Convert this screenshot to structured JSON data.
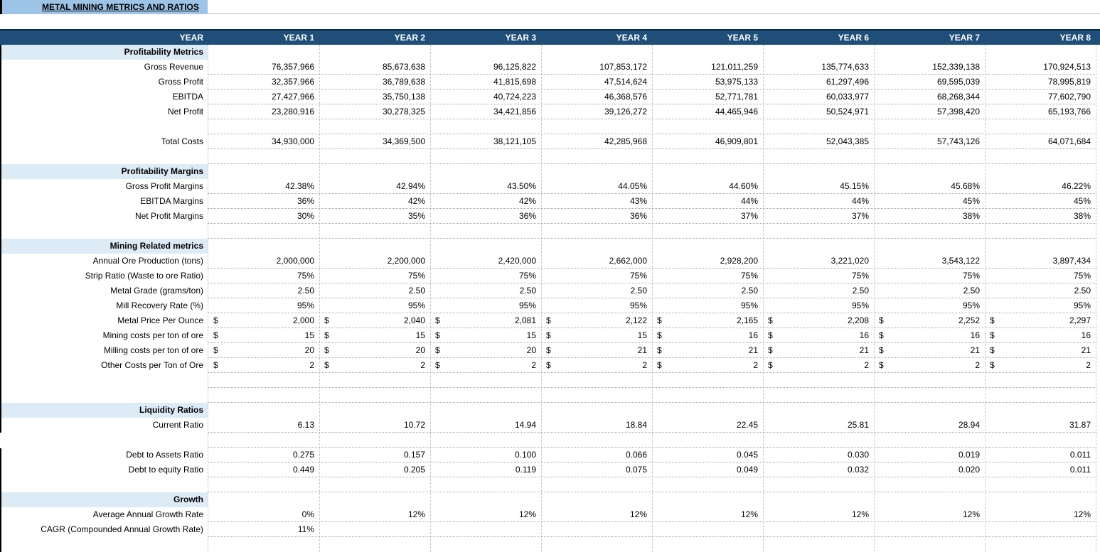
{
  "title": "METAL MINING METRICS AND RATIOS",
  "header": {
    "label": "YEAR",
    "years": [
      "YEAR 1",
      "YEAR 2",
      "YEAR 3",
      "YEAR 4",
      "YEAR 5",
      "YEAR 6",
      "YEAR 7",
      "YEAR 8"
    ]
  },
  "rows": [
    {
      "type": "section",
      "label": "Profitability Metrics"
    },
    {
      "type": "data",
      "label": "Gross Revenue",
      "values": [
        "76,357,966",
        "85,673,638",
        "96,125,822",
        "107,853,172",
        "121,011,259",
        "135,774,633",
        "152,339,138",
        "170,924,513"
      ]
    },
    {
      "type": "data",
      "label": "Gross Profit",
      "values": [
        "32,357,966",
        "36,789,638",
        "41,815,698",
        "47,514,624",
        "53,975,133",
        "61,297,496",
        "69,595,039",
        "78,995,819"
      ]
    },
    {
      "type": "data",
      "label": "EBITDA",
      "values": [
        "27,427,966",
        "35,750,138",
        "40,724,223",
        "46,368,576",
        "52,771,781",
        "60,033,977",
        "68,268,344",
        "77,602,790"
      ]
    },
    {
      "type": "data",
      "label": "Net Profit",
      "values": [
        "23,280,916",
        "30,278,325",
        "34,421,856",
        "39,126,272",
        "44,465,946",
        "50,524,971",
        "57,398,420",
        "65,193,766"
      ]
    },
    {
      "type": "blank"
    },
    {
      "type": "data",
      "label": "Total Costs",
      "values": [
        "34,930,000",
        "34,369,500",
        "38,121,105",
        "42,285,968",
        "46,909,801",
        "52,043,385",
        "57,743,126",
        "64,071,684"
      ]
    },
    {
      "type": "blank"
    },
    {
      "type": "section",
      "label": "Profitability Margins"
    },
    {
      "type": "data",
      "label": "Gross Profit Margins",
      "values": [
        "42.38%",
        "42.94%",
        "43.50%",
        "44.05%",
        "44.60%",
        "45.15%",
        "45.68%",
        "46.22%"
      ]
    },
    {
      "type": "data",
      "label": "EBITDA Margins",
      "values": [
        "36%",
        "42%",
        "42%",
        "43%",
        "44%",
        "44%",
        "45%",
        "45%"
      ]
    },
    {
      "type": "data",
      "label": "Net Profit Margins",
      "values": [
        "30%",
        "35%",
        "36%",
        "36%",
        "37%",
        "37%",
        "38%",
        "38%"
      ]
    },
    {
      "type": "blank"
    },
    {
      "type": "section",
      "label": "Mining Related metrics"
    },
    {
      "type": "data",
      "label": "Annual Ore Production (tons)",
      "values": [
        "2,000,000",
        "2,200,000",
        "2,420,000",
        "2,662,000",
        "2,928,200",
        "3,221,020",
        "3,543,122",
        "3,897,434"
      ]
    },
    {
      "type": "data",
      "label": "Strip Ratio (Waste to ore Ratio)",
      "values": [
        "75%",
        "75%",
        "75%",
        "75%",
        "75%",
        "75%",
        "75%",
        "75%"
      ]
    },
    {
      "type": "data",
      "label": "Metal Grade (grams/ton)",
      "values": [
        "2.50",
        "2.50",
        "2.50",
        "2.50",
        "2.50",
        "2.50",
        "2.50",
        "2.50"
      ]
    },
    {
      "type": "data",
      "label": "Mill Recovery Rate (%)",
      "values": [
        "95%",
        "95%",
        "95%",
        "95%",
        "95%",
        "95%",
        "95%",
        "95%"
      ]
    },
    {
      "type": "data",
      "label": "Metal Price Per Ounce",
      "dollar": "$",
      "values": [
        "2,000",
        "2,040",
        "2,081",
        "2,122",
        "2,165",
        "2,208",
        "2,252",
        "2,297"
      ]
    },
    {
      "type": "data",
      "label": "Mining costs per ton of ore",
      "dollar": "$",
      "values": [
        "15",
        "15",
        "15",
        "15",
        "16",
        "16",
        "16",
        "16"
      ]
    },
    {
      "type": "data",
      "label": "Milling costs per ton of ore",
      "dollar": "$",
      "values": [
        "20",
        "20",
        "20",
        "21",
        "21",
        "21",
        "21",
        "21"
      ]
    },
    {
      "type": "data",
      "label": "Other Costs per Ton of Ore",
      "dollar": "$",
      "values": [
        "2",
        "2",
        "2",
        "2",
        "2",
        "2",
        "2",
        "2"
      ]
    },
    {
      "type": "blank"
    },
    {
      "type": "blank"
    },
    {
      "type": "section",
      "label": "Liquidity Ratios"
    },
    {
      "type": "data",
      "label": "Current Ratio",
      "values": [
        "6.13",
        "10.72",
        "14.94",
        "18.84",
        "22.45",
        "25.81",
        "28.94",
        "31.87"
      ]
    },
    {
      "type": "blank"
    },
    {
      "type": "data",
      "label": "Debt to Assets Ratio",
      "values": [
        "0.275",
        "0.157",
        "0.100",
        "0.066",
        "0.045",
        "0.030",
        "0.019",
        "0.011"
      ]
    },
    {
      "type": "data",
      "label": "Debt to equity Ratio",
      "values": [
        "0.449",
        "0.205",
        "0.119",
        "0.075",
        "0.049",
        "0.032",
        "0.020",
        "0.011"
      ]
    },
    {
      "type": "blank"
    },
    {
      "type": "section",
      "label": "Growth"
    },
    {
      "type": "data",
      "label": "Average Annual Growth Rate",
      "values": [
        "0%",
        "12%",
        "12%",
        "12%",
        "12%",
        "12%",
        "12%",
        "12%"
      ]
    },
    {
      "type": "data",
      "label": "CAGR (Compounded Annual Growth Rate)",
      "values": [
        "11%",
        "",
        "",
        "",
        "",
        "",
        "",
        ""
      ]
    }
  ]
}
